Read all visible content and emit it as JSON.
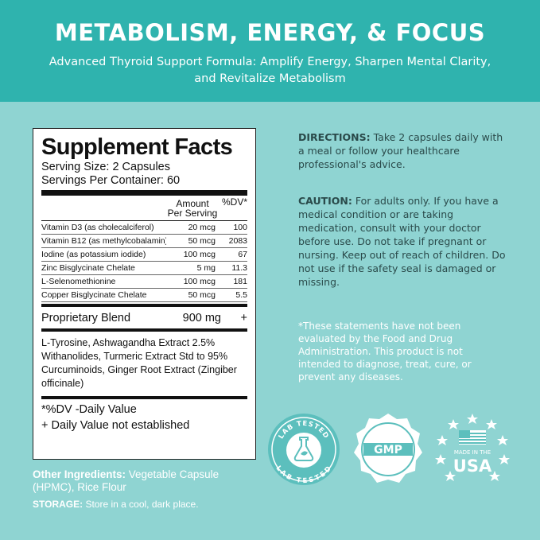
{
  "header": {
    "title": "METABOLISM, ENERGY, & FOCUS",
    "subtitle": "Advanced Thyroid Support Formula: Amplify Energy, Sharpen Mental Clarity, and Revitalize Metabolism"
  },
  "facts": {
    "title": "Supplement Facts",
    "serving_size": "Serving Size: 2 Capsules",
    "servings_per_container": "Servings Per Container: 60",
    "col_amount_line1": "Amount",
    "col_amount_line2": "Per Serving",
    "col_dv": "%DV*",
    "rows": [
      {
        "name": "Vitamin D3 (as cholecalciferol)",
        "amount": "20 mcg",
        "dv": "100"
      },
      {
        "name": "Vitamin B12 (as methylcobalamin)",
        "amount": "50 mcg",
        "dv": "2083"
      },
      {
        "name": "Iodine (as potassium iodide)",
        "amount": "100 mcg",
        "dv": "67"
      },
      {
        "name": "Zinc Bisglycinate Chelate",
        "amount": "5 mg",
        "dv": "11.3"
      },
      {
        "name": "L-Selenomethionine",
        "amount": "100 mcg",
        "dv": "181"
      },
      {
        "name": "Copper Bisglycinate Chelate",
        "amount": "50 mcg",
        "dv": "5.5"
      }
    ],
    "blend_name": "Proprietary Blend",
    "blend_amount": "900 mg",
    "blend_dv": "+",
    "blend_desc": "L-Tyrosine, Ashwagandha Extract 2.5% Withanolides, Turmeric Extract Std to 95% Curcuminoids, Ginger Root Extract (Zingiber officinale)",
    "foot1": "*%DV -Daily Value",
    "foot2": "+ Daily Value not established"
  },
  "other": {
    "label": "Other Ingredients:",
    "text": " Vegetable Capsule (HPMC), Rice Flour"
  },
  "storage": {
    "label": "STORAGE:",
    "text": " Store in a cool, dark place."
  },
  "directions": {
    "label": "DIRECTIONS:",
    "text": " Take 2 capsules daily with a meal or follow your healthcare professional's advice."
  },
  "caution": {
    "label": "CAUTION:",
    "text": " For adults only. If you have a medical condition or are taking medication, consult with your doctor before use. Do not take if pregnant or nursing. Keep out of reach of children. Do not use if the safety seal is damaged or missing."
  },
  "disclaimer": "*These statements have not been evaluated by the Food and Drug Administration. This product is not intended to diagnose, treat, cure, or prevent any diseases.",
  "badges": {
    "lab_top": "LAB TESTED",
    "lab_bottom": "LAB TESTED",
    "gmp": "GMP",
    "usa_line1": "MADE IN THE",
    "usa_line2": "USA"
  },
  "colors": {
    "header_bg": "#2fb3ae",
    "page_bg": "#8fd4d2",
    "badge_teal": "#5cbfbd"
  }
}
